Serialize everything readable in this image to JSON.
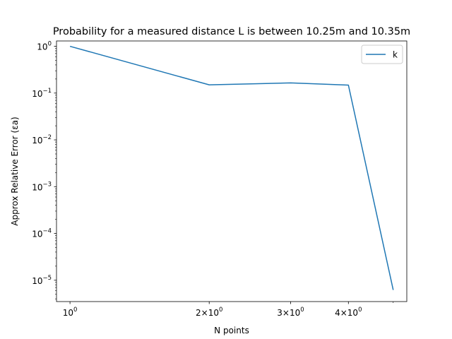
{
  "chart_data": {
    "type": "line",
    "title": "Probability for a measured distance L is between 10.25m and 10.35m",
    "xlabel": "N points",
    "ylabel": "Approx Relative Error (εa)",
    "x_scale": "log",
    "y_scale": "log",
    "x_ticks": [
      {
        "value": 1,
        "label_base": "10",
        "label_exp": "0",
        "label_coef": ""
      },
      {
        "value": 2,
        "label_base": "10",
        "label_exp": "0",
        "label_coef": "2×"
      },
      {
        "value": 3,
        "label_base": "10",
        "label_exp": "0",
        "label_coef": "3×"
      },
      {
        "value": 4,
        "label_base": "10",
        "label_exp": "0",
        "label_coef": "4×"
      }
    ],
    "y_ticks": [
      {
        "value": 1,
        "label_base": "10",
        "label_exp": "0"
      },
      {
        "value": 0.1,
        "label_base": "10",
        "label_exp": "−1"
      },
      {
        "value": 0.01,
        "label_base": "10",
        "label_exp": "−2"
      },
      {
        "value": 0.001,
        "label_base": "10",
        "label_exp": "−3"
      },
      {
        "value": 0.0001,
        "label_base": "10",
        "label_exp": "−4"
      },
      {
        "value": 1e-05,
        "label_base": "10",
        "label_exp": "−5"
      }
    ],
    "xlim": [
      0.935,
      5.35
    ],
    "ylim": [
      3.5e-06,
      1.3
    ],
    "series": [
      {
        "name": "k",
        "color": "#1f77b4",
        "x": [
          1,
          2,
          3,
          4,
          5
        ],
        "y": [
          1.0,
          0.15,
          0.165,
          0.148,
          6.2e-06
        ]
      }
    ],
    "legend": {
      "position": "top-right"
    },
    "grid": false
  }
}
